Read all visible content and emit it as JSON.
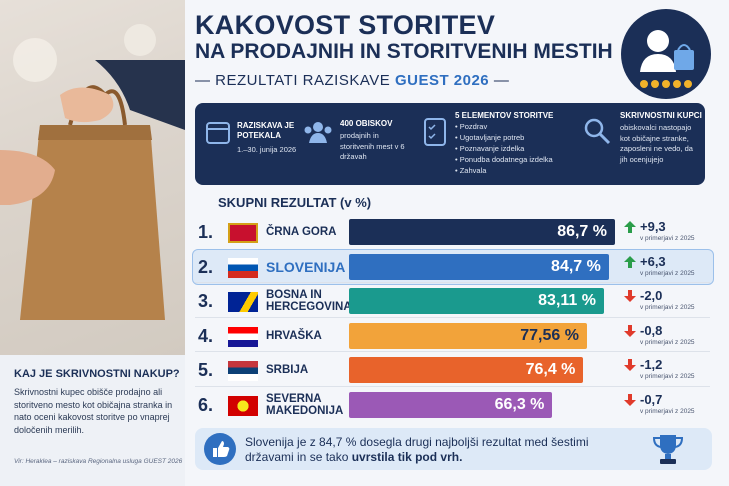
{
  "header": {
    "title_line1": "KAKOVOST STORITEV",
    "title_line2": "NA PRODAJNIH IN STORITVENIH MESTIH",
    "subtitle": "REZULTATI RAZISKAVE",
    "subtitle_highlight": "GUEST 2026"
  },
  "info": [
    {
      "title": "RAZISKAVA JE POTEKALA",
      "text": "1.–30. junija 2026"
    },
    {
      "title": "400 OBISKOV",
      "text": "prodajnih in storitvenih mest v 6 državah"
    },
    {
      "title": "5 ELEMENTOV STORITVE",
      "items": [
        "Pozdrav",
        "Ugotavljanje potreb",
        "Poznavanje izdelka",
        "Ponudba dodatnega izdelka",
        "Zahvala"
      ]
    },
    {
      "title": "SKRIVNOSTNI KUPCI",
      "text": "obiskovalci nastopajo kot običajne stranke, zaposleni ne vedo, da jih ocenjujejo"
    }
  ],
  "chart_data": {
    "type": "bar",
    "orientation": "horizontal",
    "title": "SKUPNI REZULTAT (v %)",
    "ranks": [
      "1.",
      "2.",
      "3.",
      "4.",
      "5.",
      "6."
    ],
    "categories": [
      "ČRNA GORA",
      "SLOVENIJA",
      "BOSNA IN HERCEGOVINA",
      "HRVAŠKA",
      "SRBIJA",
      "SEVERNA MAKEDONIJA"
    ],
    "values": [
      86.7,
      84.7,
      83.11,
      77.56,
      76.4,
      66.3
    ],
    "value_labels": [
      "86,7 %",
      "84,7 %",
      "83,11 %",
      "77,56 %",
      "76,4 %",
      "66,3 %"
    ],
    "colors": [
      "#1b2f57",
      "#2f6fc0",
      "#1a9a8e",
      "#f2a33a",
      "#e8632b",
      "#9b59b6"
    ],
    "highlighted_category": "SLOVENIJA",
    "change": {
      "values": [
        9.3,
        6.3,
        -2.0,
        -0.8,
        -1.2,
        -0.7
      ],
      "value_labels": [
        "+9,3",
        "+6,3",
        "-2,0",
        "-0,8",
        "-1,2",
        "-0,7"
      ],
      "note": "v primerjavi z 2025"
    }
  },
  "sidebar": {
    "heading": "KAJ JE SKRIVNOSTNI NAKUP?",
    "text": "Skrivnostni kupec obišče prodajno ali storitveno mesto kot običajna stranka in nato oceni kakovost storitve po vnaprej določenih merilih.",
    "source": "Vir: Heraklea – raziskava Regionalna usluga GUEST 2026"
  },
  "footer": {
    "text": "Slovenija je z 84,7 % dosegla drugi najboljši rezultat med šestimi državami in se tako ",
    "text_bold": "uvrstila tik pod vrh",
    "text_end": "."
  }
}
